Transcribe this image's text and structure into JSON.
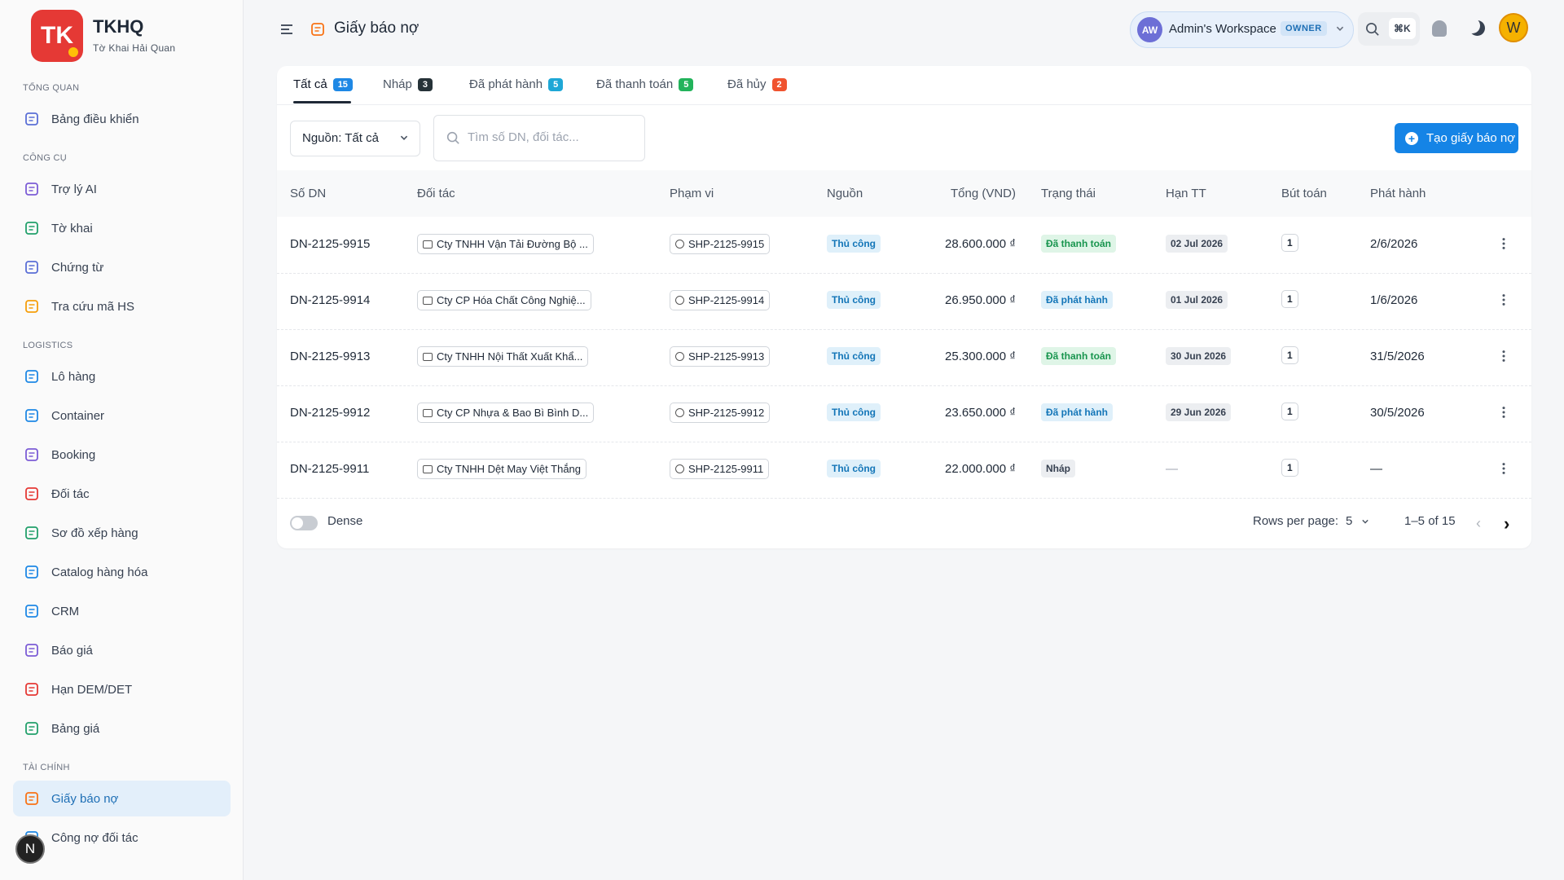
{
  "sidebar": {
    "logo": "TK",
    "brand": "TKHQ",
    "subtitle": "Tờ Khai Hải Quan",
    "sections": [
      {
        "title": "TỔNG QUAN",
        "items": [
          {
            "label": "Bảng điều khiển"
          }
        ]
      },
      {
        "title": "CÔNG CỤ",
        "items": [
          {
            "label": "Trợ lý AI"
          },
          {
            "label": "Tờ khai"
          },
          {
            "label": "Chứng từ"
          },
          {
            "label": "Tra cứu mã HS"
          }
        ]
      },
      {
        "title": "LOGISTICS",
        "items": [
          {
            "label": "Lô hàng"
          },
          {
            "label": "Container"
          },
          {
            "label": "Booking"
          },
          {
            "label": "Đối tác"
          },
          {
            "label": "Sơ đồ xếp hàng"
          },
          {
            "label": "Catalog hàng hóa"
          },
          {
            "label": "CRM"
          },
          {
            "label": "Báo giá"
          },
          {
            "label": "Hạn DEM/DET"
          },
          {
            "label": "Bảng giá"
          }
        ]
      },
      {
        "title": "TÀI CHÍNH",
        "items": [
          {
            "label": "Giấy báo nợ",
            "active": true
          },
          {
            "label": "Công nợ đối tác"
          }
        ]
      }
    ],
    "dev_badge": "N"
  },
  "header": {
    "title": "Giấy báo nợ",
    "workspace": {
      "avatar": "AW",
      "name": "Admin's Workspace",
      "role": "OWNER"
    },
    "shortcut": "⌘K",
    "user_avatar": "W"
  },
  "tabs": [
    {
      "label": "Tất cả",
      "count": 15,
      "color": "#1e88e5",
      "active": true
    },
    {
      "label": "Nháp",
      "count": 3,
      "color": "#263238"
    },
    {
      "label": "Đã phát hành",
      "count": 5,
      "color": "#1ea7d6"
    },
    {
      "label": "Đã thanh toán",
      "count": 5,
      "color": "#22b35b"
    },
    {
      "label": "Đã hủy",
      "count": 2,
      "color": "#f0532f"
    }
  ],
  "filters": {
    "source": "Nguồn: Tất cả",
    "search_placeholder": "Tìm số DN, đối tác...",
    "create_button": "Tạo giấy báo nợ"
  },
  "table": {
    "columns": [
      "Số DN",
      "Đối tác",
      "Phạm vi",
      "Nguồn",
      "Tổng (VND)",
      "Trạng thái",
      "Hạn TT",
      "Bút toán",
      "Phát hành"
    ],
    "rows": [
      {
        "id": "DN-2125-9915",
        "partner": "Cty TNHH Vận Tải Đường Bộ ...",
        "scope": "SHP-2125-9915",
        "source": "Thủ công",
        "total": "28.600.000 ₫",
        "status": {
          "label": "Đã thanh toán",
          "tone": "green"
        },
        "due": "02 Jul 2026",
        "entries": "1",
        "issued": "2/6/2026"
      },
      {
        "id": "DN-2125-9914",
        "partner": "Cty CP Hóa Chất Công Nghiệ...",
        "scope": "SHP-2125-9914",
        "source": "Thủ công",
        "total": "26.950.000 ₫",
        "status": {
          "label": "Đã phát hành",
          "tone": "blue"
        },
        "due": "01 Jul 2026",
        "entries": "1",
        "issued": "1/6/2026"
      },
      {
        "id": "DN-2125-9913",
        "partner": "Cty TNHH Nội Thất Xuất Khẩ...",
        "scope": "SHP-2125-9913",
        "source": "Thủ công",
        "total": "25.300.000 ₫",
        "status": {
          "label": "Đã thanh toán",
          "tone": "green"
        },
        "due": "30 Jun 2026",
        "entries": "1",
        "issued": "31/5/2026"
      },
      {
        "id": "DN-2125-9912",
        "partner": "Cty CP Nhựa & Bao Bì Bình D...",
        "scope": "SHP-2125-9912",
        "source": "Thủ công",
        "total": "23.650.000 ₫",
        "status": {
          "label": "Đã phát hành",
          "tone": "blue"
        },
        "due": "29 Jun 2026",
        "entries": "1",
        "issued": "30/5/2026"
      },
      {
        "id": "DN-2125-9911",
        "partner": "Cty TNHH Dệt May Việt Thắng",
        "scope": "SHP-2125-9911",
        "source": "Thủ công",
        "total": "22.000.000 ₫",
        "status": {
          "label": "Nháp",
          "tone": "gray"
        },
        "due": "—",
        "entries": "1",
        "issued": "—"
      }
    ]
  },
  "footer": {
    "dense": "Dense",
    "rows_per_page_label": "Rows per page:",
    "rows_per_page": "5",
    "range": "1–5 of 15"
  }
}
